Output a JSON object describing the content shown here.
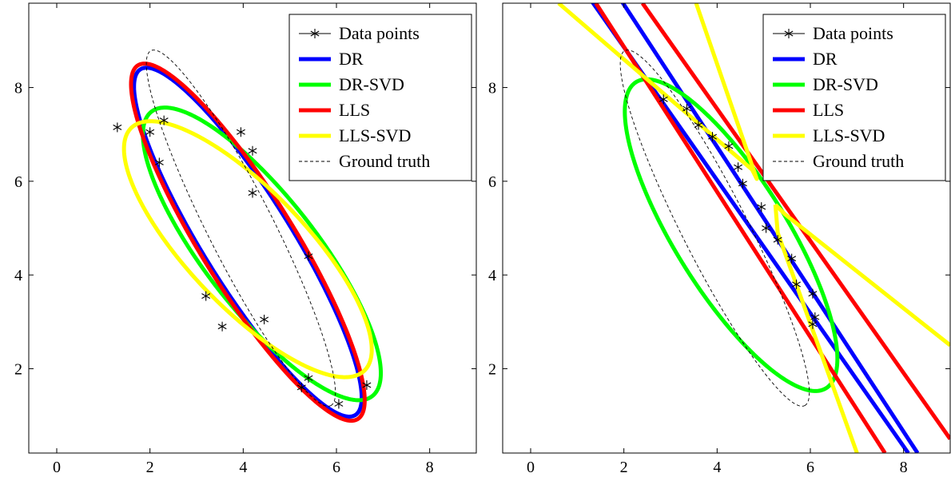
{
  "chart_data": [
    {
      "type": "scatter",
      "title": "",
      "xlabel": "",
      "ylabel": "",
      "xlim": [
        -0.6,
        9.0
      ],
      "ylim": [
        0.2,
        9.8
      ],
      "xticks": [
        0,
        2,
        4,
        6,
        8
      ],
      "yticks": [
        2,
        4,
        6,
        8
      ],
      "legend_position": "top-right",
      "legend": [
        "Data points",
        "DR",
        "DR-SVD",
        "LLS",
        "LLS-SVD",
        "Ground truth"
      ],
      "data_points": [
        [
          1.3,
          7.15
        ],
        [
          2.0,
          7.05
        ],
        [
          2.2,
          6.4
        ],
        [
          2.3,
          7.3
        ],
        [
          3.2,
          3.55
        ],
        [
          3.55,
          2.9
        ],
        [
          3.95,
          7.05
        ],
        [
          4.2,
          6.65
        ],
        [
          4.2,
          5.75
        ],
        [
          4.45,
          3.05
        ],
        [
          5.4,
          4.4
        ],
        [
          5.25,
          1.6
        ],
        [
          5.4,
          1.8
        ],
        [
          6.05,
          1.25
        ],
        [
          6.65,
          1.65
        ]
      ],
      "series": [
        {
          "name": "DR",
          "color": "#0000ff",
          "ellipse": {
            "cx": 4.1,
            "cy": 4.7,
            "a": 4.35,
            "b": 0.95,
            "angle_deg": -58
          }
        },
        {
          "name": "DR-SVD",
          "color": "#00ff00",
          "ellipse": {
            "cx": 4.4,
            "cy": 4.45,
            "a": 3.85,
            "b": 1.2,
            "angle_deg": -52
          }
        },
        {
          "name": "LLS",
          "color": "#ff0000",
          "ellipse": {
            "cx": 4.1,
            "cy": 4.7,
            "a": 4.45,
            "b": 1.0,
            "angle_deg": -58
          }
        },
        {
          "name": "LLS-SVD",
          "color": "#ffff00",
          "ellipse": {
            "cx": 4.1,
            "cy": 4.55,
            "a": 3.6,
            "b": 1.25,
            "angle_deg": -46
          }
        },
        {
          "name": "Ground truth",
          "color": "#000000",
          "dashed": true,
          "ellipse": {
            "cx": 3.95,
            "cy": 5.0,
            "a": 4.25,
            "b": 0.7,
            "angle_deg": -63
          }
        }
      ]
    },
    {
      "type": "scatter",
      "title": "",
      "xlabel": "",
      "ylabel": "",
      "xlim": [
        -0.6,
        9.0
      ],
      "ylim": [
        0.2,
        9.8
      ],
      "xticks": [
        0,
        2,
        4,
        6,
        8
      ],
      "yticks": [
        2,
        4,
        6,
        8
      ],
      "legend_position": "top-right",
      "legend": [
        "Data points",
        "DR",
        "DR-SVD",
        "LLS",
        "LLS-SVD",
        "Ground truth"
      ],
      "data_points": [
        [
          2.85,
          7.75
        ],
        [
          3.35,
          7.55
        ],
        [
          3.6,
          7.2
        ],
        [
          3.9,
          6.95
        ],
        [
          4.25,
          6.75
        ],
        [
          4.45,
          6.3
        ],
        [
          4.55,
          5.95
        ],
        [
          4.95,
          5.45
        ],
        [
          5.05,
          5.0
        ],
        [
          5.3,
          4.75
        ],
        [
          5.6,
          4.35
        ],
        [
          5.7,
          3.8
        ],
        [
          6.05,
          3.6
        ],
        [
          6.1,
          3.1
        ],
        [
          6.05,
          2.95
        ]
      ],
      "series": [
        {
          "name": "DR",
          "color": "#0000ff",
          "lines": [
            [
              [
                1.2,
                10.0
              ],
              [
                8.1,
                0.2
              ]
            ],
            [
              [
                1.85,
                10.0
              ],
              [
                8.3,
                0.2
              ]
            ]
          ]
        },
        {
          "name": "DR-SVD",
          "color": "#00ff00",
          "ellipse": {
            "cx": 4.3,
            "cy": 4.85,
            "a": 3.85,
            "b": 1.2,
            "angle_deg": -58
          }
        },
        {
          "name": "LLS",
          "color": "#ff0000",
          "lines": [
            [
              [
                1.4,
                9.8
              ],
              [
                7.6,
                0.2
              ]
            ],
            [
              [
                2.4,
                9.8
              ],
              [
                9.0,
                0.5
              ]
            ]
          ]
        },
        {
          "name": "LLS-SVD",
          "color": "#ffff00",
          "hyperbola": [
            [
              [
                0.6,
                9.8
              ],
              [
                4.75,
                6.25
              ],
              [
                4.85,
                6.05
              ],
              [
                3.55,
                9.8
              ]
            ],
            [
              [
                5.25,
                5.5
              ],
              [
                5.45,
                5.3
              ],
              [
                9.0,
                2.5
              ]
            ],
            [
              [
                5.25,
                5.5
              ],
              [
                5.3,
                4.9
              ],
              [
                7.0,
                0.2
              ]
            ]
          ]
        },
        {
          "name": "Ground truth",
          "color": "#000000",
          "dashed": true,
          "ellipse": {
            "cx": 3.95,
            "cy": 5.0,
            "a": 4.25,
            "b": 0.7,
            "angle_deg": -63
          }
        }
      ]
    }
  ]
}
